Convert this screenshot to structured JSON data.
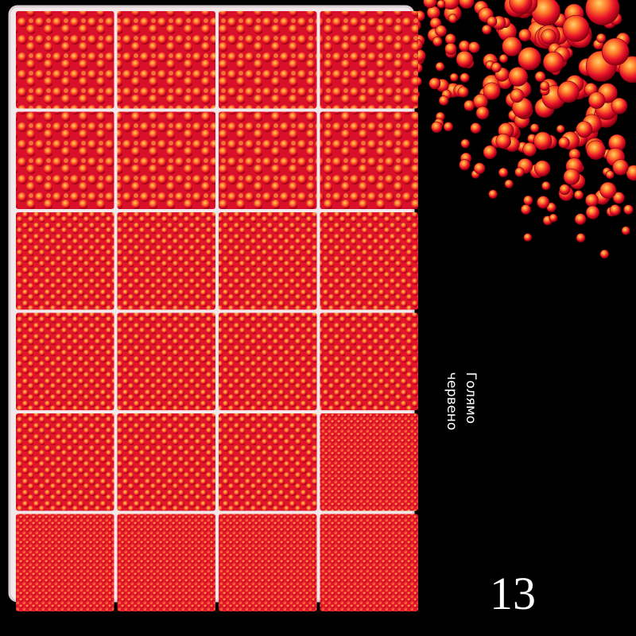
{
  "caption": {
    "lines": [
      "Голямо",
      "червено"
    ]
  },
  "number": "13"
}
